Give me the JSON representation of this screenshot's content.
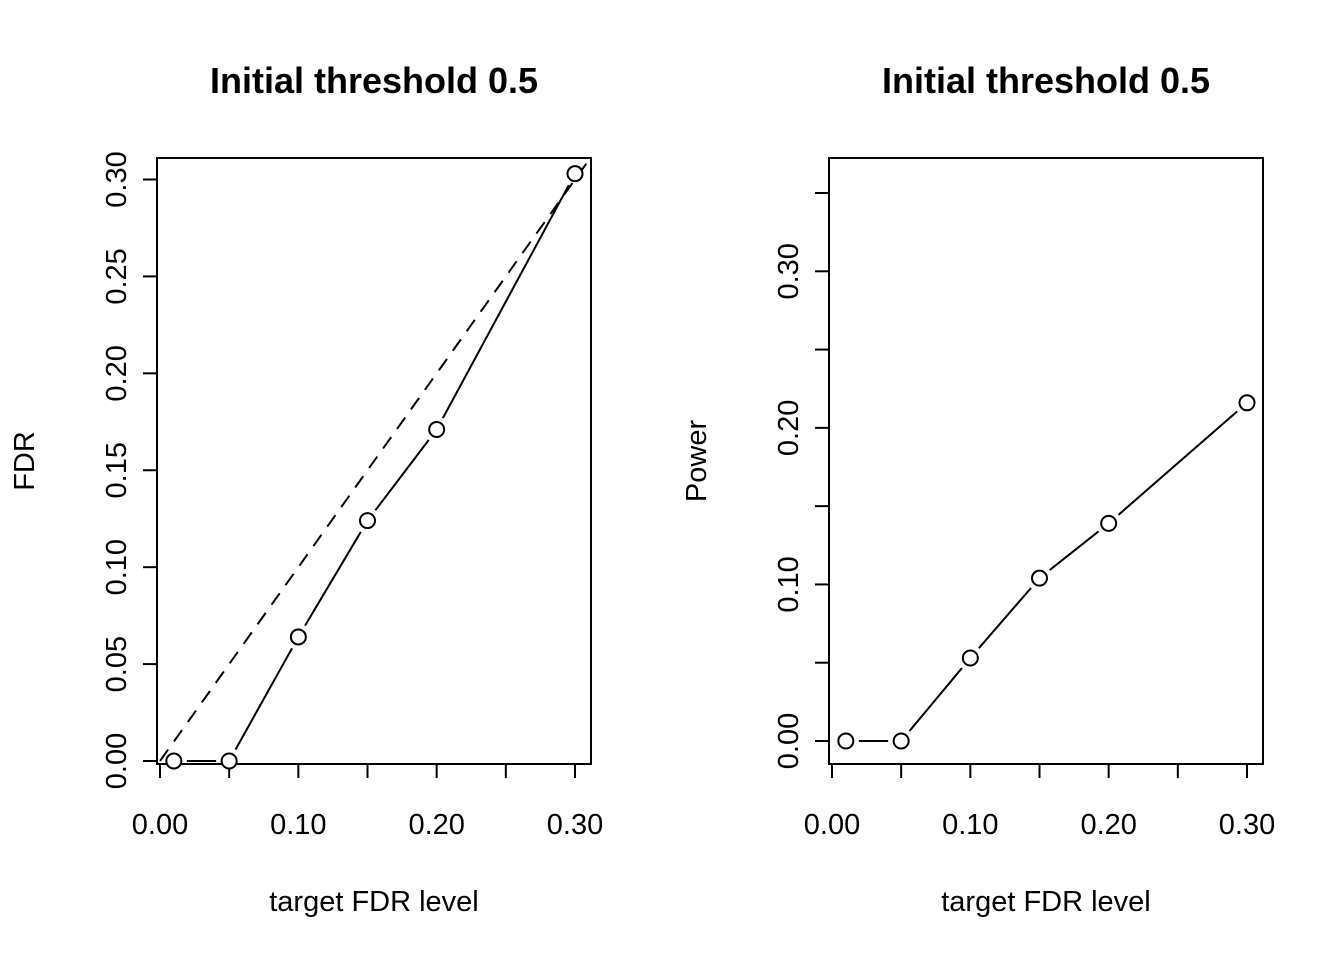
{
  "chart_data": [
    {
      "type": "line",
      "title": "Initial threshold 0.5",
      "xlabel": "target FDR level",
      "ylabel": "FDR",
      "xlim": [
        0,
        0.31
      ],
      "ylim": [
        0,
        0.31
      ],
      "xticks": [
        0.0,
        0.05,
        0.1,
        0.15,
        0.2,
        0.25,
        0.3
      ],
      "xtick_labels": [
        "0.00",
        "",
        "0.10",
        "",
        "0.20",
        "",
        "0.30"
      ],
      "yticks": [
        0.0,
        0.05,
        0.1,
        0.15,
        0.2,
        0.25,
        0.3
      ],
      "ytick_labels": [
        "0.00",
        "0.05",
        "0.10",
        "0.15",
        "0.20",
        "0.25",
        "0.30"
      ],
      "series": [
        {
          "x": [
            0.01,
            0.05,
            0.1,
            0.15,
            0.2,
            0.3
          ],
          "y": [
            0.0,
            0.0,
            0.064,
            0.124,
            0.171,
            0.303
          ]
        }
      ],
      "reference_line": {
        "slope": 1,
        "intercept": 0,
        "style": "dashed"
      },
      "grid": false
    },
    {
      "type": "line",
      "title": "Initial threshold 0.5",
      "xlabel": "target FDR level",
      "ylabel": "Power",
      "xlim": [
        0,
        0.31
      ],
      "ylim": [
        0,
        0.36
      ],
      "xticks": [
        0.0,
        0.05,
        0.1,
        0.15,
        0.2,
        0.25,
        0.3
      ],
      "xtick_labels": [
        "0.00",
        "",
        "0.10",
        "",
        "0.20",
        "",
        "0.30"
      ],
      "yticks": [
        0.0,
        0.05,
        0.1,
        0.15,
        0.2,
        0.25,
        0.3,
        0.35
      ],
      "ytick_labels": [
        "0.00",
        "",
        "0.10",
        "",
        "0.20",
        "",
        "0.30",
        ""
      ],
      "series": [
        {
          "x": [
            0.01,
            0.05,
            0.1,
            0.15,
            0.2,
            0.3
          ],
          "y": [
            0.0,
            0.0,
            0.053,
            0.104,
            0.139,
            0.216
          ]
        }
      ],
      "grid": false
    }
  ]
}
